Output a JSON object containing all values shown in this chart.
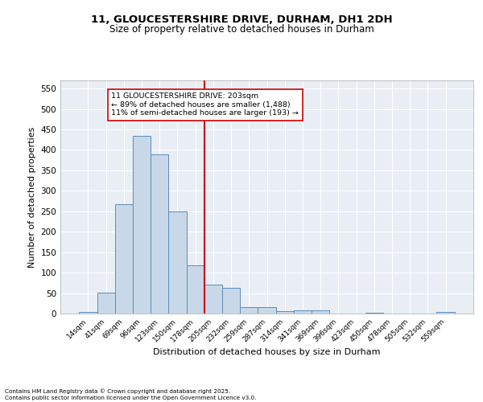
{
  "title_line1": "11, GLOUCESTERSHIRE DRIVE, DURHAM, DH1 2DH",
  "title_line2": "Size of property relative to detached houses in Durham",
  "xlabel": "Distribution of detached houses by size in Durham",
  "ylabel": "Number of detached properties",
  "bin_labels": [
    "14sqm",
    "41sqm",
    "69sqm",
    "96sqm",
    "123sqm",
    "150sqm",
    "178sqm",
    "205sqm",
    "232sqm",
    "259sqm",
    "287sqm",
    "314sqm",
    "341sqm",
    "369sqm",
    "396sqm",
    "423sqm",
    "450sqm",
    "478sqm",
    "505sqm",
    "532sqm",
    "559sqm"
  ],
  "bar_heights": [
    3,
    51,
    268,
    435,
    390,
    250,
    118,
    70,
    62,
    15,
    15,
    6,
    7,
    7,
    0,
    0,
    2,
    0,
    0,
    0,
    3
  ],
  "bar_color": "#c8d8e8",
  "bar_edge_color": "#5b8db8",
  "vline_index": 7,
  "vline_color": "#cc0000",
  "annotation_text": "11 GLOUCESTERSHIRE DRIVE: 203sqm\n← 89% of detached houses are smaller (1,488)\n11% of semi-detached houses are larger (193) →",
  "annotation_box_color": "#ffffff",
  "annotation_box_edge": "#cc0000",
  "ylim": [
    0,
    570
  ],
  "yticks": [
    0,
    50,
    100,
    150,
    200,
    250,
    300,
    350,
    400,
    450,
    500,
    550
  ],
  "background_color": "#e8eef4",
  "grid_color": "#ffffff",
  "footer_line1": "Contains HM Land Registry data © Crown copyright and database right 2025.",
  "footer_line2": "Contains public sector information licensed under the Open Government Licence v3.0."
}
